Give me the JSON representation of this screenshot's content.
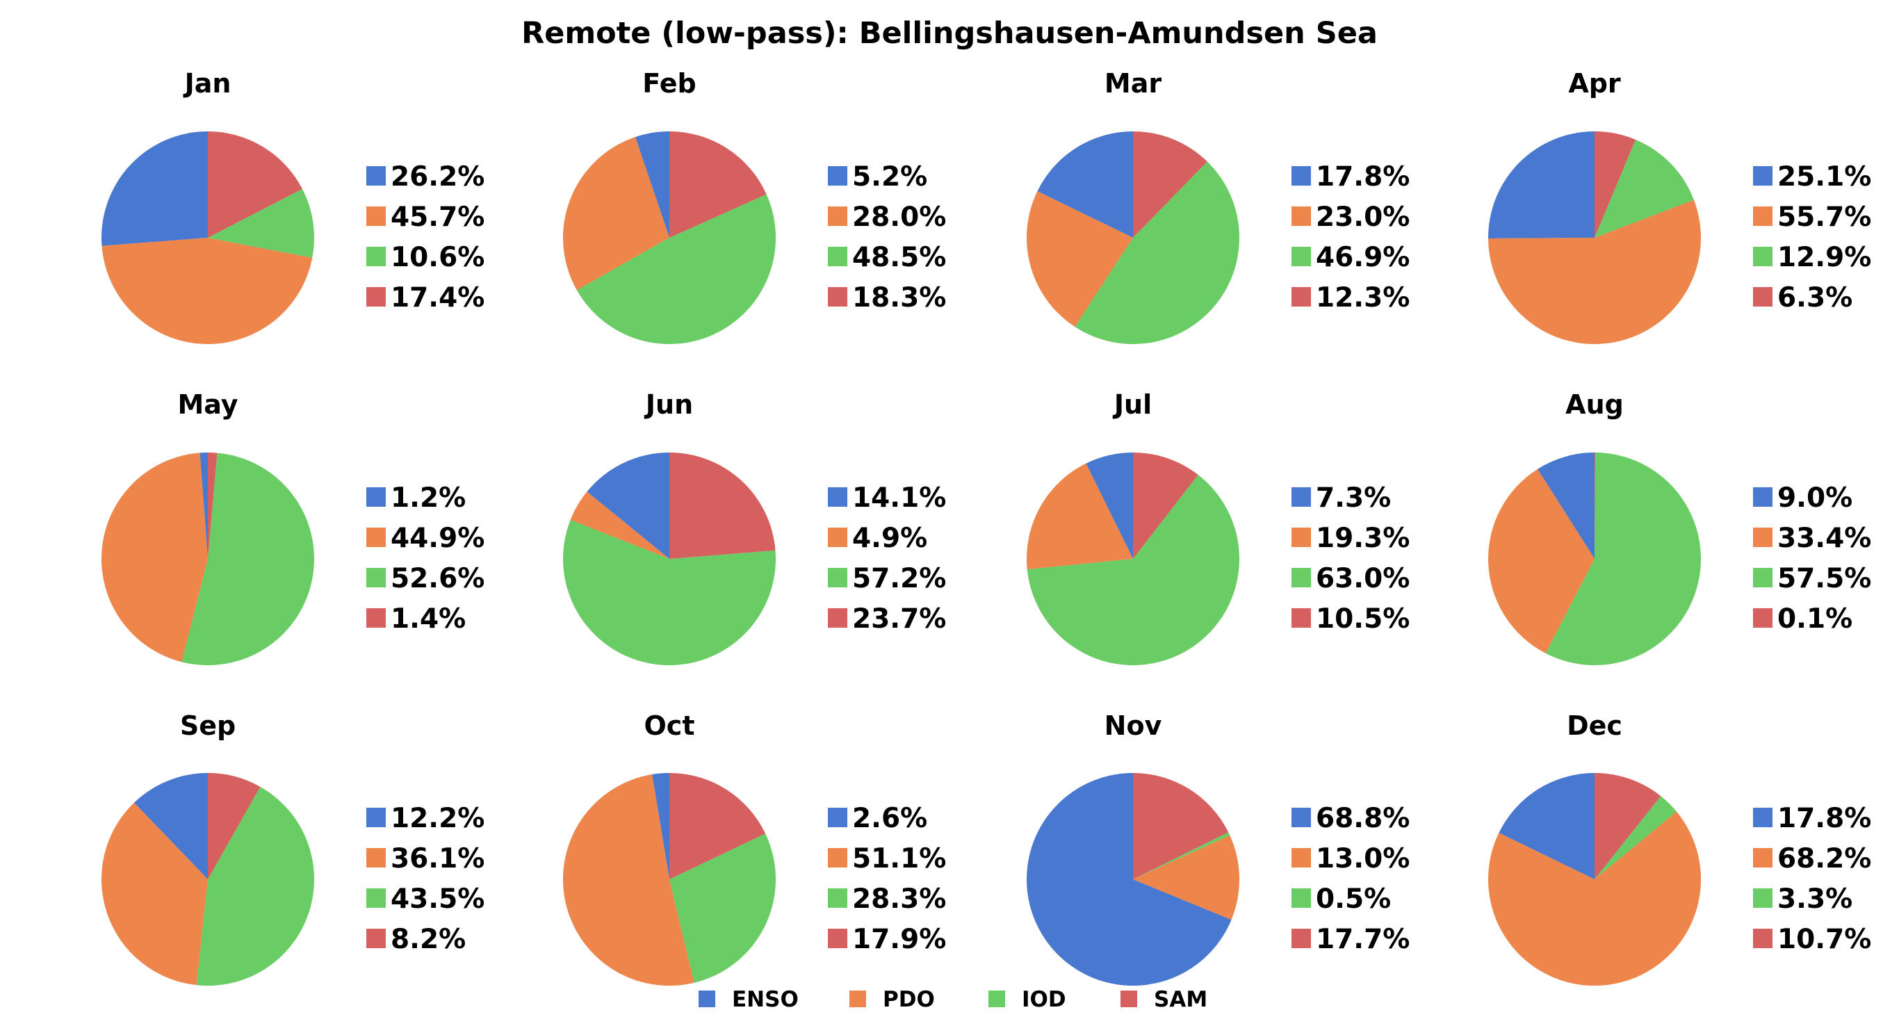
{
  "title": "Remote (low-pass): Bellingshausen-Amundsen Sea",
  "legend": [
    {
      "name": "ENSO",
      "color": "#4878d0"
    },
    {
      "name": "PDO",
      "color": "#ee854a"
    },
    {
      "name": "IOD",
      "color": "#6acc64"
    },
    {
      "name": "SAM",
      "color": "#d65f5f"
    }
  ],
  "chart_data": {
    "type": "pie",
    "title": "Remote (low-pass): Bellingshausen-Amundsen Sea",
    "series_order": [
      "ENSO",
      "PDO",
      "IOD",
      "SAM"
    ],
    "legend_position": "bottom-center",
    "pies": [
      {
        "month": "Jan",
        "values": [
          26.2,
          45.7,
          10.6,
          17.4
        ],
        "labels": [
          "26.2%",
          "45.7%",
          "10.6%",
          "17.4%"
        ]
      },
      {
        "month": "Feb",
        "values": [
          5.2,
          28.0,
          48.5,
          18.3
        ],
        "labels": [
          "5.2%",
          "28.0%",
          "48.5%",
          "18.3%"
        ]
      },
      {
        "month": "Mar",
        "values": [
          17.8,
          23.0,
          46.9,
          12.3
        ],
        "labels": [
          "17.8%",
          "23.0%",
          "46.9%",
          "12.3%"
        ]
      },
      {
        "month": "Apr",
        "values": [
          25.1,
          55.7,
          12.9,
          6.3
        ],
        "labels": [
          "25.1%",
          "55.7%",
          "12.9%",
          "6.3%"
        ]
      },
      {
        "month": "May",
        "values": [
          1.2,
          44.9,
          52.6,
          1.4
        ],
        "labels": [
          "1.2%",
          "44.9%",
          "52.6%",
          "1.4%"
        ]
      },
      {
        "month": "Jun",
        "values": [
          14.1,
          4.9,
          57.2,
          23.7
        ],
        "labels": [
          "14.1%",
          "4.9%",
          "57.2%",
          "23.7%"
        ]
      },
      {
        "month": "Jul",
        "values": [
          7.3,
          19.3,
          63.0,
          10.5
        ],
        "labels": [
          "7.3%",
          "19.3%",
          "63.0%",
          "10.5%"
        ]
      },
      {
        "month": "Aug",
        "values": [
          9.0,
          33.4,
          57.5,
          0.1
        ],
        "labels": [
          "9.0%",
          "33.4%",
          "57.5%",
          "0.1%"
        ]
      },
      {
        "month": "Sep",
        "values": [
          12.2,
          36.1,
          43.5,
          8.2
        ],
        "labels": [
          "12.2%",
          "36.1%",
          "43.5%",
          "8.2%"
        ]
      },
      {
        "month": "Oct",
        "values": [
          2.6,
          51.1,
          28.3,
          17.9
        ],
        "labels": [
          "2.6%",
          "51.1%",
          "28.3%",
          "17.9%"
        ]
      },
      {
        "month": "Nov",
        "values": [
          68.8,
          13.0,
          0.5,
          17.7
        ],
        "labels": [
          "68.8%",
          "13.0%",
          "0.5%",
          "17.7%"
        ]
      },
      {
        "month": "Dec",
        "values": [
          17.8,
          68.2,
          3.3,
          10.7
        ],
        "labels": [
          "17.8%",
          "68.2%",
          "3.3%",
          "10.7%"
        ]
      }
    ]
  }
}
